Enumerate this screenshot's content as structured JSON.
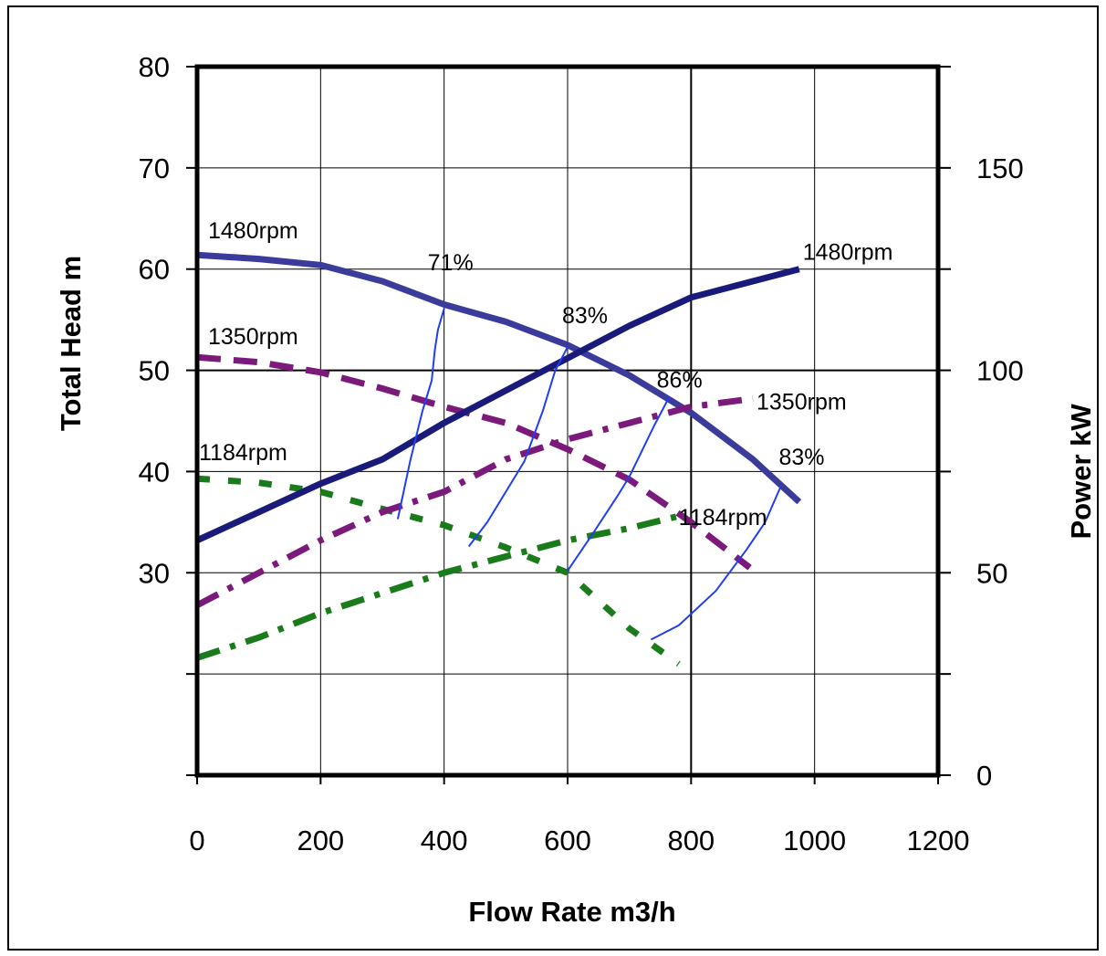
{
  "chart_data": {
    "type": "line",
    "title": "",
    "xlabel": "Flow Rate m3/h",
    "ylabel": "Total Head m",
    "y2label": "Power kW",
    "xlim": [
      0,
      1200
    ],
    "ylim": [
      10,
      80
    ],
    "y2lim": [
      0,
      175
    ],
    "grid": true,
    "x_ticks": [
      "0",
      "200",
      "400",
      "600",
      "800",
      "1000",
      "1200"
    ],
    "x_tick_values": [
      0,
      200,
      400,
      600,
      800,
      1000,
      1200
    ],
    "y_ticks": [
      "30",
      "40",
      "50",
      "60",
      "70",
      "80"
    ],
    "y_tick_values": [
      30,
      40,
      50,
      60,
      70,
      80
    ],
    "y2_ticks": [
      "0",
      "50",
      "100",
      "150"
    ],
    "y2_tick_values": [
      0,
      50,
      100,
      150
    ],
    "head_series": [
      {
        "label": "1480rpm",
        "color": "#3b3b9b",
        "dash": "solid",
        "x": [
          0,
          100,
          200,
          300,
          400,
          500,
          600,
          700,
          800,
          900,
          975
        ],
        "y": [
          61.4,
          61.0,
          60.4,
          58.8,
          56.5,
          54.8,
          52.5,
          49.5,
          45.8,
          41.2,
          37.0
        ]
      },
      {
        "label": "1350rpm",
        "color": "#7b1a7b",
        "dash": "dashed",
        "x": [
          0,
          100,
          200,
          300,
          400,
          500,
          600,
          700,
          800,
          895
        ],
        "y": [
          51.3,
          50.8,
          49.8,
          48.2,
          46.4,
          44.8,
          42.2,
          39.2,
          35.0,
          30.5
        ]
      },
      {
        "label": "1184rpm",
        "color": "#1a7b1a",
        "dash": "dotted",
        "x": [
          0,
          100,
          200,
          300,
          400,
          500,
          600,
          700,
          780
        ],
        "y": [
          39.3,
          38.9,
          38.0,
          36.3,
          34.7,
          32.5,
          30.0,
          24.5,
          21.0
        ]
      }
    ],
    "power_series": [
      {
        "label": "1480rpm",
        "color": "#1a1a7b",
        "dash": "solid",
        "x": [
          0,
          100,
          200,
          300,
          400,
          500,
          600,
          700,
          800,
          900,
          975
        ],
        "y": [
          58,
          65,
          72,
          78,
          87,
          95,
          103,
          111,
          118,
          122,
          125
        ]
      },
      {
        "label": "1350rpm",
        "color": "#7b1a7b",
        "dash": "dashdot",
        "x": [
          0,
          100,
          200,
          300,
          400,
          500,
          600,
          700,
          800,
          900
        ],
        "y": [
          42,
          50,
          58,
          65,
          70,
          78,
          83,
          87,
          91,
          93
        ]
      },
      {
        "label": "1184rpm",
        "color": "#1a7b1a",
        "dash": "dashdot",
        "x": [
          0,
          100,
          200,
          300,
          400,
          500,
          600,
          700,
          780
        ],
        "y": [
          29,
          34,
          40,
          45,
          50,
          54,
          58,
          61,
          64
        ]
      }
    ],
    "efficiency_lines": [
      {
        "label": "71%",
        "color": "#1f3ff0",
        "x": [
          325,
          345,
          365,
          380,
          385,
          390,
          400
        ],
        "y": [
          35.3,
          41,
          46,
          49,
          52,
          54,
          56.1
        ]
      },
      {
        "label": "83%",
        "color": "#1f3ff0",
        "x": [
          440,
          470,
          500,
          530,
          560,
          580,
          600
        ],
        "y": [
          32.6,
          35,
          38,
          41,
          46,
          50,
          52.3
        ]
      },
      {
        "label": "86%",
        "color": "#1f3ff0",
        "x": [
          600,
          640,
          680,
          700,
          720,
          740,
          765
        ],
        "y": [
          30.2,
          33.8,
          37.5,
          39.5,
          42,
          44.5,
          47.4
        ]
      },
      {
        "label": "83%",
        "color": "#1f3ff0",
        "x": [
          735,
          780,
          840,
          890,
          920,
          945
        ],
        "y": [
          23.4,
          24.8,
          28.2,
          32.3,
          35,
          38.5
        ]
      }
    ]
  }
}
